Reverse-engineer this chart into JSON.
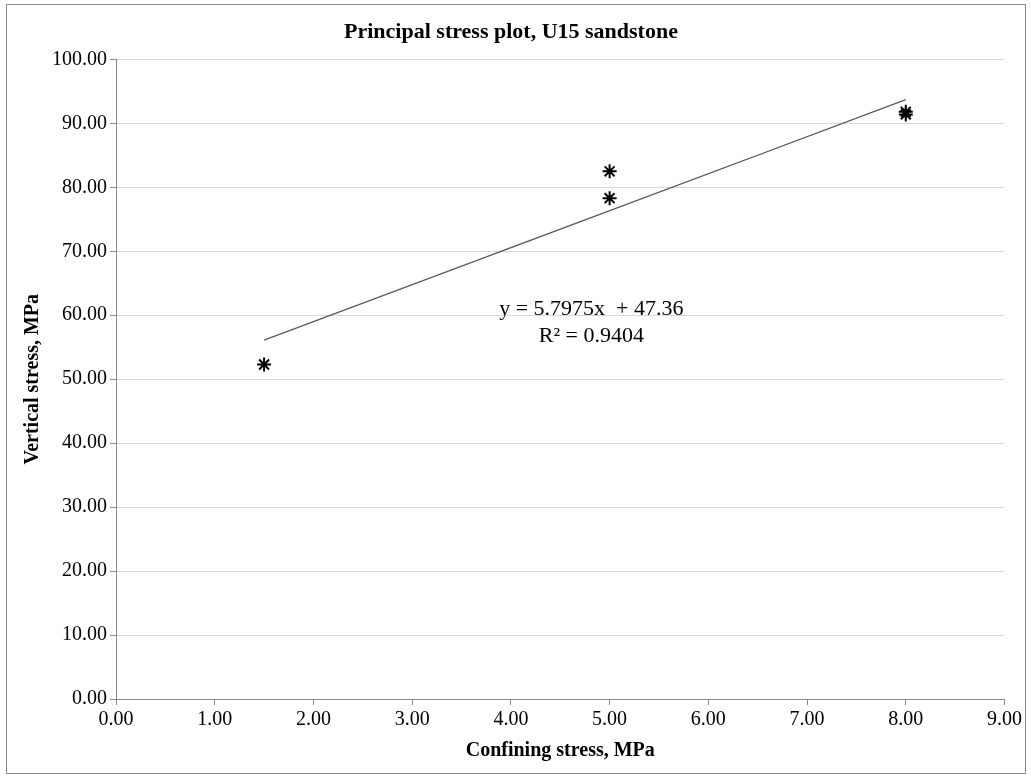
{
  "chart_data": {
    "type": "scatter",
    "title": "Principal stress plot, U15 sandstone",
    "xlabel": "Confining stress, MPa",
    "ylabel": "Vertical stress, MPa",
    "x": [
      1.5,
      5,
      5,
      8,
      8
    ],
    "series": [
      {
        "color": "#000000",
        "values": [
          52.3,
          82.5,
          78.3,
          91.4,
          91.8
        ],
        "marker": "cross"
      },
      {
        "type": "line",
        "color": "#595959",
        "x": [
          1.5,
          8
        ],
        "values": [
          56.1,
          93.7
        ],
        "marker": "none"
      }
    ],
    "annotations": [
      "y = 5.7975x  + 47.36",
      "R² = 0.9404"
    ],
    "xlim": [
      0,
      9
    ],
    "xticks": [
      {
        "value": 0,
        "label": "0.00"
      },
      {
        "value": 1,
        "label": "1.00"
      },
      {
        "value": 2,
        "label": "2.00"
      },
      {
        "value": 3,
        "label": "3.00"
      },
      {
        "value": 4,
        "label": "4.00"
      },
      {
        "value": 5,
        "label": "5.00"
      },
      {
        "value": 6,
        "label": "6.00"
      },
      {
        "value": 7,
        "label": "7.00"
      },
      {
        "value": 8,
        "label": "8.00"
      },
      {
        "value": 9,
        "label": "9.00"
      }
    ],
    "ylim": [
      0,
      100
    ],
    "yticks": [
      {
        "value": 0,
        "label": "0.00"
      },
      {
        "value": 10,
        "label": "10.00"
      },
      {
        "value": 20,
        "label": "20.00"
      },
      {
        "value": 30,
        "label": "30.00"
      },
      {
        "value": 40,
        "label": "40.00"
      },
      {
        "value": 50,
        "label": "50.00"
      },
      {
        "value": 60,
        "label": "60.00"
      },
      {
        "value": 70,
        "label": "70.00"
      },
      {
        "value": 80,
        "label": "80.00"
      },
      {
        "value": 90,
        "label": "90.00"
      },
      {
        "value": 100,
        "label": "100.00"
      }
    ],
    "grid": "y",
    "legend": false
  }
}
